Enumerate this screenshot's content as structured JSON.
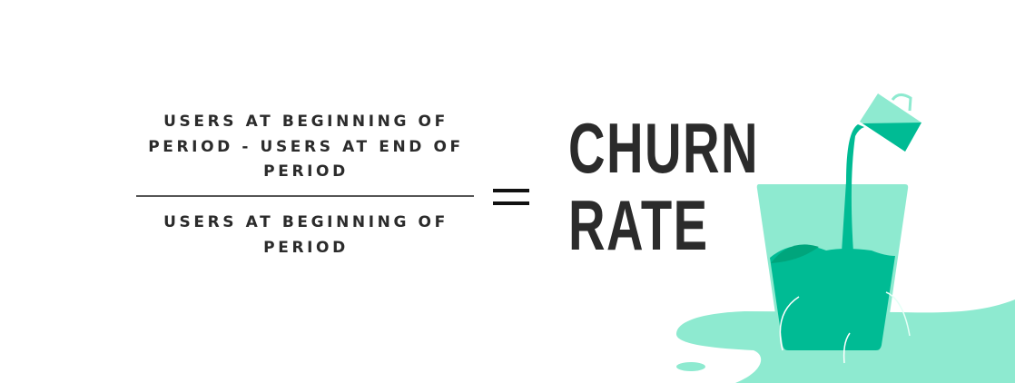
{
  "formula": {
    "numerator": "USERS AT BEGINNING OF PERIOD - USERS AT END OF PERIOD",
    "denominator": "USERS AT BEGINNING OF PERIOD",
    "equals": "=",
    "result_line1": "CHURN",
    "result_line2": "RATE"
  },
  "colors": {
    "light_teal": "#8eead0",
    "teal": "#00bb94",
    "dark_teal": "#00a57c",
    "text": "#2b2b2b"
  },
  "illustration": {
    "icons": [
      "pitcher-icon",
      "leaking-glass-icon",
      "puddle-icon"
    ]
  }
}
